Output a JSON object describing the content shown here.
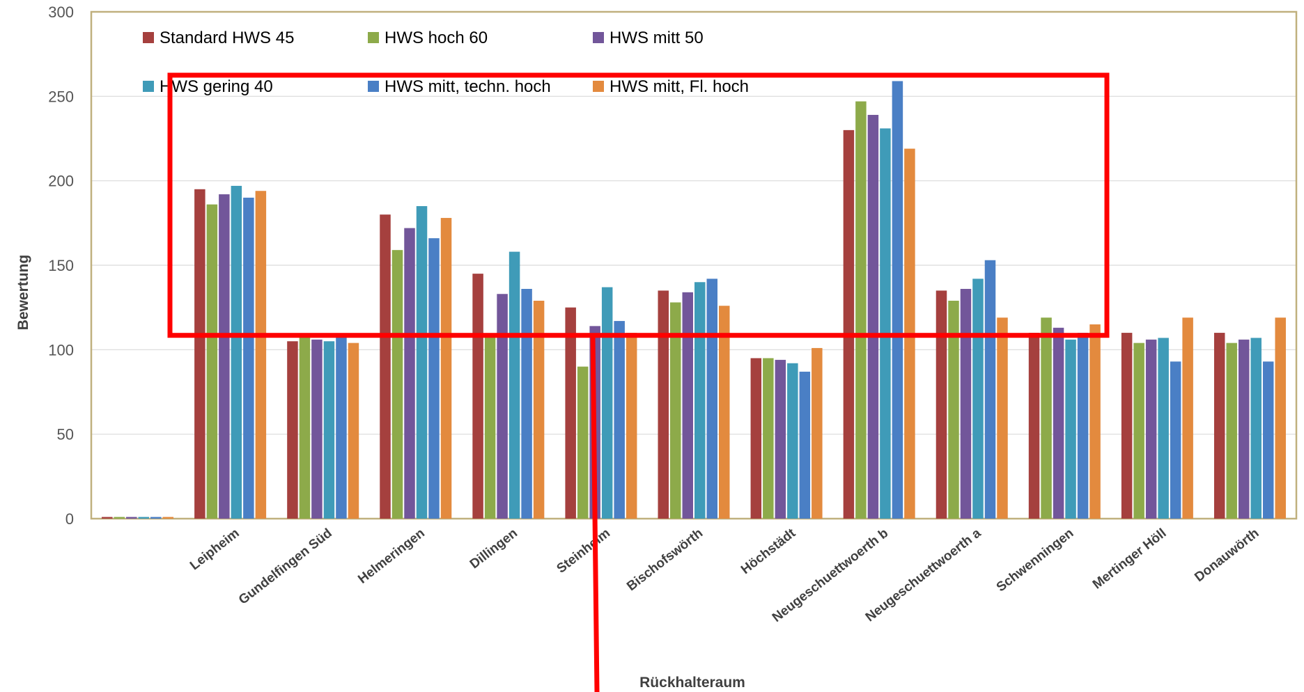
{
  "chart_data": {
    "type": "bar",
    "xlabel": "Rückhalteraum",
    "ylabel": "Bewertung",
    "ylim": [
      0,
      300
    ],
    "yticks": [
      0,
      50,
      100,
      150,
      200,
      250,
      300
    ],
    "grid": true,
    "legend_position": "top-left inside plot",
    "categories": [
      "",
      "Leipheim",
      "Gundelfingen Süd",
      "Helmeringen",
      "Dillingen",
      "Steinheim",
      "Bischofswörth",
      "Höchstädt",
      "Neugeschuettwoerth  b",
      "Neugeschuettwoerth a",
      "Schwenningen",
      "Mertinger Höll",
      "Donauwörth"
    ],
    "series": [
      {
        "name": "Standard HWS 45",
        "color": "#A5403E",
        "values": [
          1,
          195,
          105,
          180,
          145,
          125,
          135,
          95,
          230,
          135,
          110,
          110,
          110
        ]
      },
      {
        "name": "HWS hoch 60",
        "color": "#8DAA4A",
        "values": [
          1,
          186,
          108,
          159,
          108,
          90,
          128,
          95,
          247,
          129,
          119,
          104,
          104
        ]
      },
      {
        "name": "HWS mitt 50",
        "color": "#72569A",
        "values": [
          1,
          192,
          106,
          172,
          133,
          114,
          134,
          94,
          239,
          136,
          113,
          106,
          106
        ]
      },
      {
        "name": "HWS gering 40",
        "color": "#3F9BB8",
        "values": [
          1,
          197,
          105,
          185,
          158,
          137,
          140,
          92,
          231,
          142,
          106,
          107,
          107
        ]
      },
      {
        "name": "HWS mitt, techn. hoch",
        "color": "#4A7FC5",
        "values": [
          1,
          190,
          108,
          166,
          136,
          117,
          142,
          87,
          259,
          153,
          110,
          93,
          93
        ]
      },
      {
        "name": "HWS mitt, Fl. hoch",
        "color": "#E38A3E",
        "values": [
          1,
          194,
          104,
          178,
          129,
          110,
          126,
          101,
          219,
          119,
          115,
          119,
          119
        ]
      }
    ]
  },
  "annotation": {
    "color": "#FF0000",
    "box_y_range": [
      108.5,
      262.5
    ]
  }
}
